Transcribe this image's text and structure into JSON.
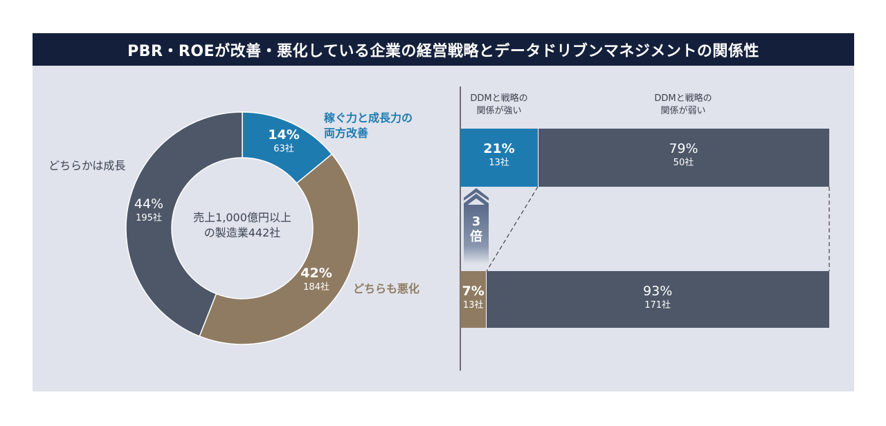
{
  "title": "PBR・ROEが改善・悪化している企業の経営戦略とデータドリブンマネジメントの関係性",
  "colors": {
    "navy": "#14203b",
    "blue": "#1e7bb0",
    "tan": "#8f7b62",
    "slate": "#4d5768",
    "background": "#e0e3eb"
  },
  "donut": {
    "center_label_line1": "売上1,000億円以上",
    "center_label_line2": "の製造業442社",
    "outer_labels": {
      "improve_line1": "稼ぐ力と成長力の",
      "improve_line2": "両方改善",
      "worse": "どちらも悪化",
      "growth": "どちらかは成長"
    }
  },
  "bars": {
    "col_strong_line1": "DDMと戦略の",
    "col_strong_line2": "関係が強い",
    "col_weak_line1": "DDMと戦略の",
    "col_weak_line2": "関係が弱い",
    "multiplier_num": "3",
    "multiplier_unit": "倍"
  },
  "chart_data": [
    {
      "type": "pie",
      "variant": "donut",
      "total_companies": 442,
      "slices": [
        {
          "label": "両方改善",
          "percent_label": "14%",
          "count_label": "63社",
          "percent": 14,
          "count": 63,
          "color": "#1e7bb0"
        },
        {
          "label": "どちらも悪化",
          "percent_label": "42%",
          "count_label": "184社",
          "percent": 42,
          "count": 184,
          "color": "#8f7b62"
        },
        {
          "label": "どちらかは成長",
          "percent_label": "44%",
          "count_label": "195社",
          "percent": 44,
          "count": 195,
          "color": "#4d5768"
        }
      ]
    },
    {
      "type": "bar",
      "orientation": "horizontal",
      "stacked": true,
      "percent_scale": true,
      "rows": [
        {
          "group": "両方改善",
          "segments": [
            {
              "category": "DDMと戦略の関係が強い",
              "percent_label": "21%",
              "count_label": "13社",
              "percent": 21,
              "count": 13,
              "color": "#1e7bb0"
            },
            {
              "category": "DDMと戦略の関係が弱い",
              "percent_label": "79%",
              "count_label": "50社",
              "percent": 79,
              "count": 50,
              "color": "#4d5768"
            }
          ]
        },
        {
          "group": "どちらも悪化",
          "segments": [
            {
              "category": "DDMと戦略の関係が強い",
              "percent_label": "7%",
              "count_label": "13社",
              "percent": 7,
              "count": 13,
              "color": "#8f7b62"
            },
            {
              "category": "DDMと戦略の関係が弱い",
              "percent_label": "93%",
              "count_label": "171社",
              "percent": 93,
              "count": 171,
              "color": "#4d5768"
            }
          ]
        }
      ]
    }
  ]
}
